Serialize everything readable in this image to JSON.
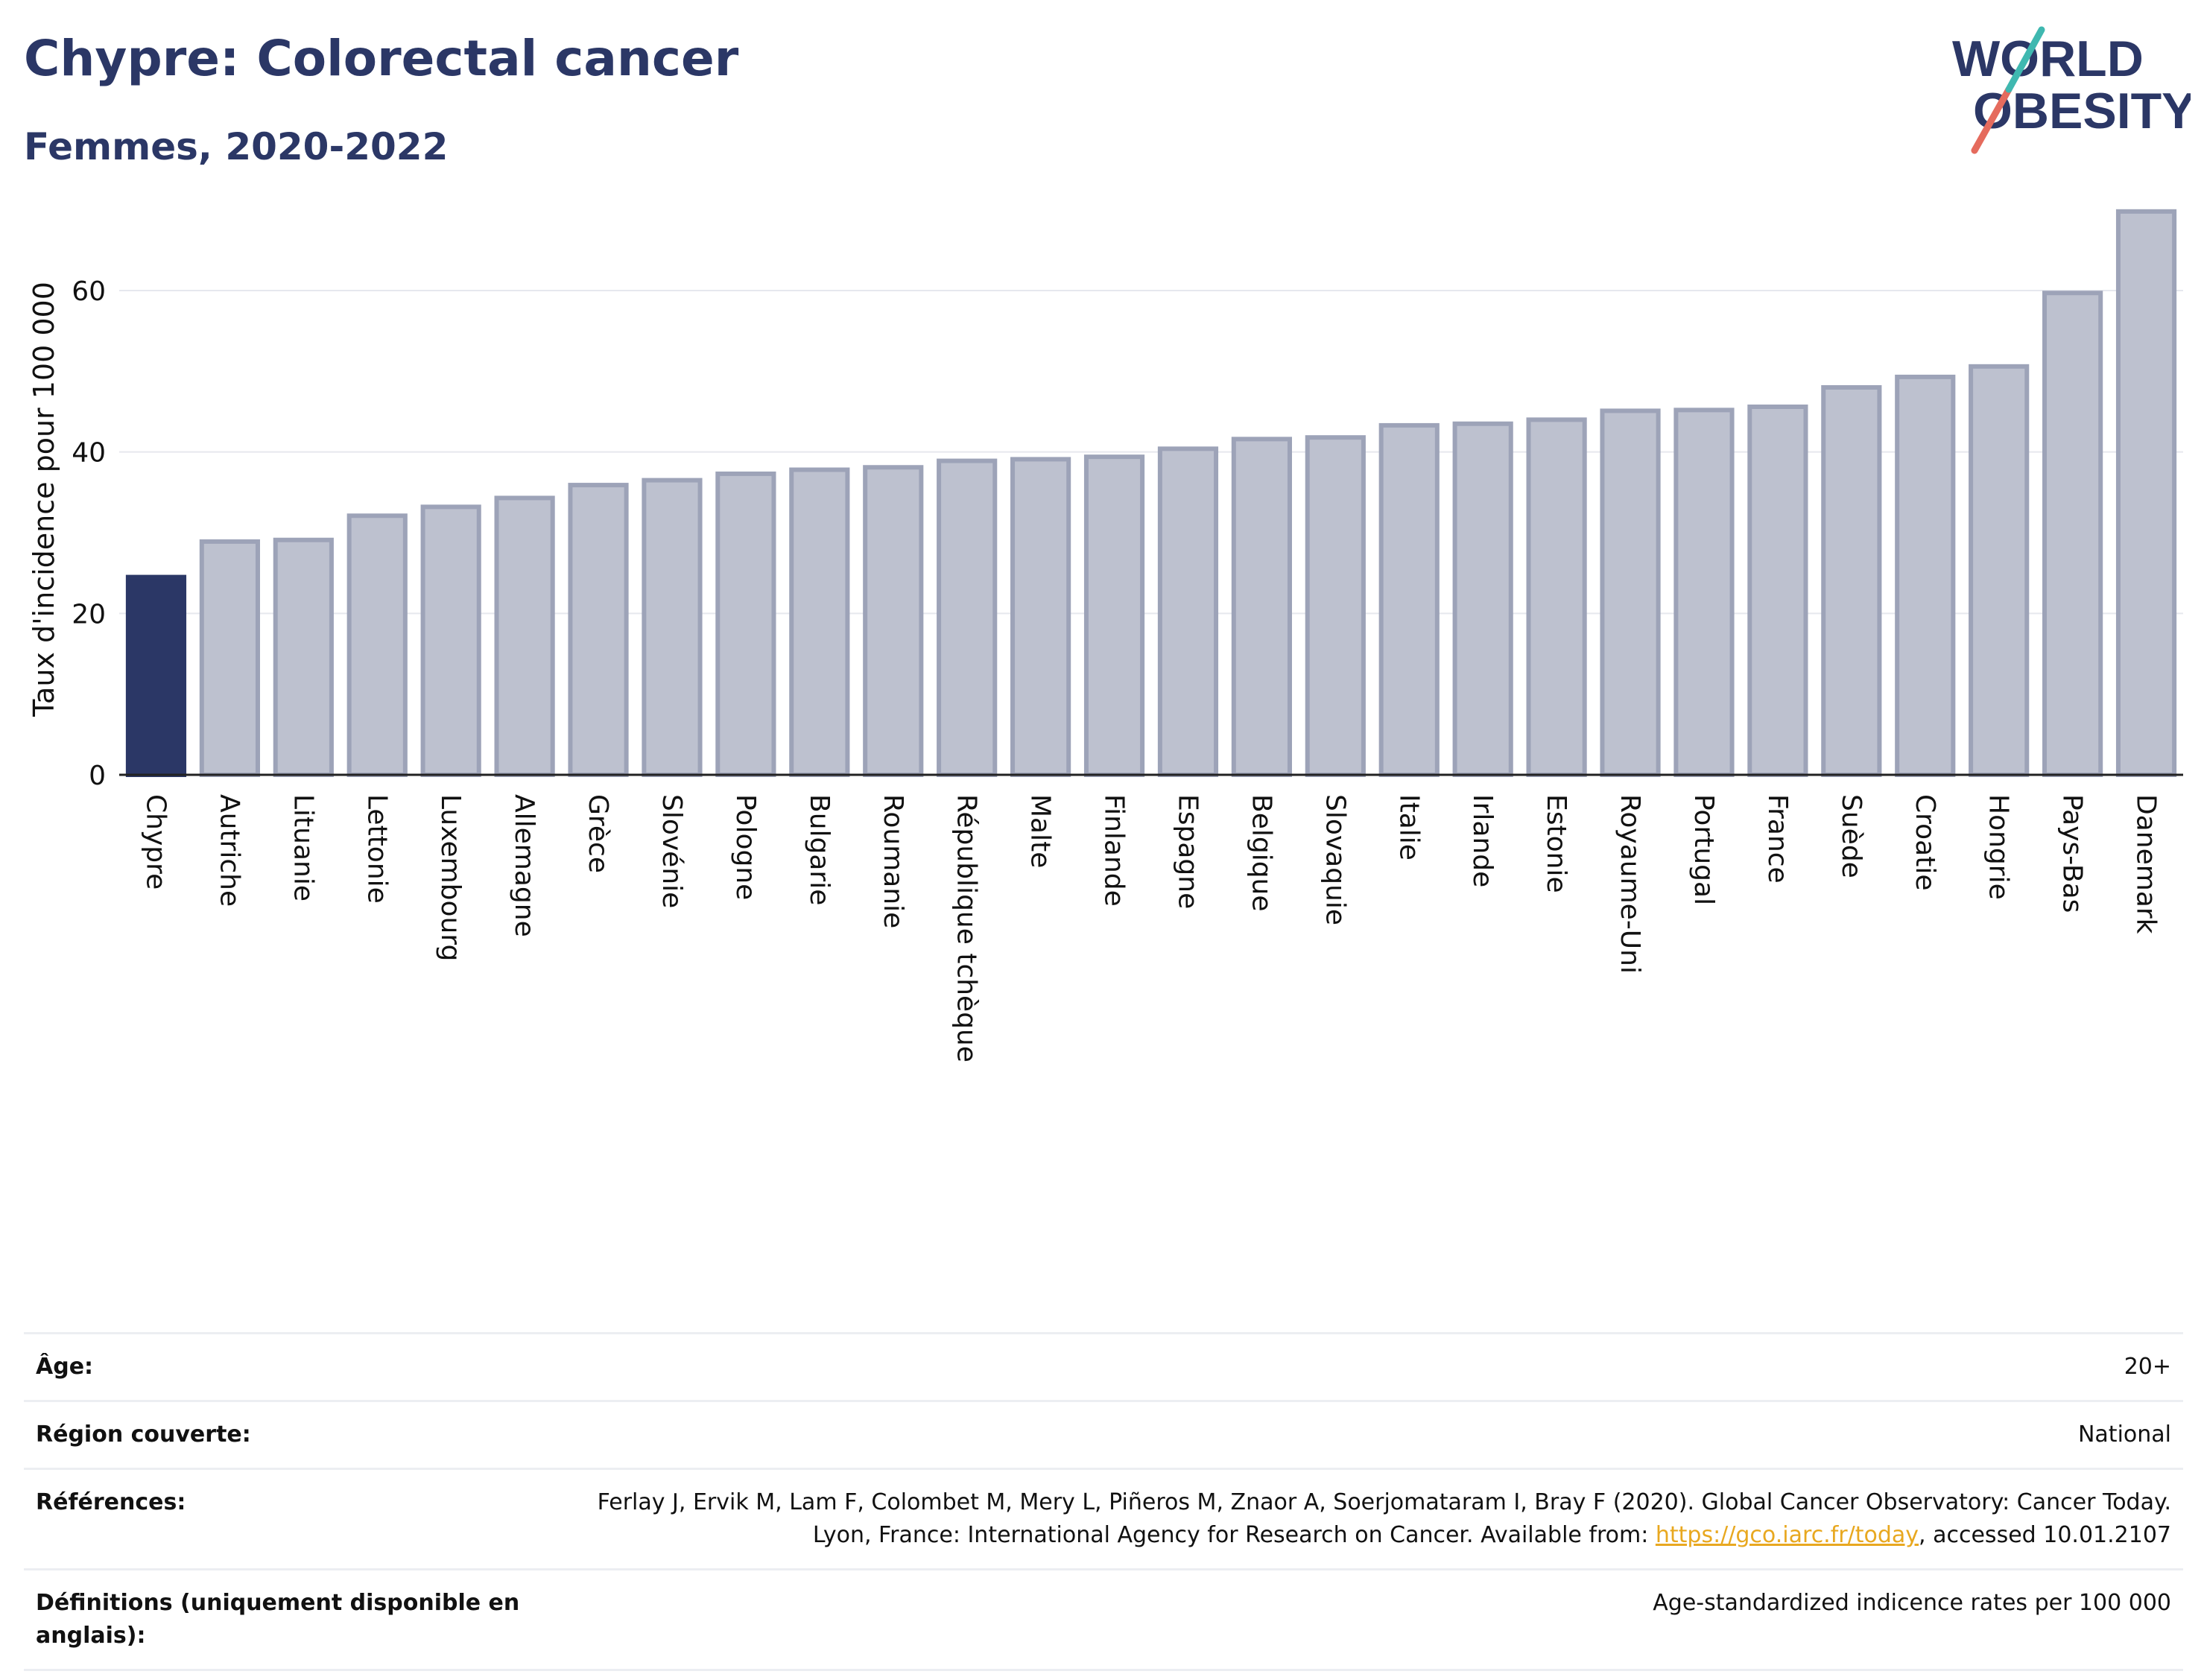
{
  "title": "Chypre: Colorectal cancer",
  "subtitle": "Femmes, 2020-2022",
  "logo": {
    "line1": "WORLD",
    "line2": "OBESITY"
  },
  "colors": {
    "highlight": "#2b3766",
    "bar_fill": "#bdc1cf",
    "bar_stroke": "#9da3b8",
    "text": "#2b3766",
    "link": "#e8a820"
  },
  "chart_data": {
    "type": "bar",
    "ylabel": "Taux d'incidence pour 100 000",
    "ylim": [
      0,
      72
    ],
    "yticks": [
      0,
      20,
      40,
      60
    ],
    "grid": true,
    "highlight_category": "Chypre",
    "categories": [
      "Chypre",
      "Autriche",
      "Lituanie",
      "Lettonie",
      "Luxembourg",
      "Allemagne",
      "Grèce",
      "Slovénie",
      "Pologne",
      "Bulgarie",
      "Roumanie",
      "République tchèque",
      "Malte",
      "Finlande",
      "Espagne",
      "Belgique",
      "Slovaquie",
      "Italie",
      "Irlande",
      "Estonie",
      "Royaume-Uni",
      "Portugal",
      "France",
      "Suède",
      "Croatie",
      "Hongrie",
      "Pays-Bas",
      "Danemark"
    ],
    "values": [
      24.5,
      28.9,
      29.1,
      32.1,
      33.2,
      34.3,
      35.9,
      36.5,
      37.3,
      37.8,
      38.1,
      38.9,
      39.1,
      39.4,
      40.4,
      41.6,
      41.8,
      43.3,
      43.5,
      44.0,
      45.1,
      45.2,
      45.6,
      48.0,
      49.3,
      50.6,
      59.7,
      69.8
    ]
  },
  "meta": [
    {
      "key": "Âge:",
      "value": "20+"
    },
    {
      "key": "Région couverte:",
      "value": "National"
    },
    {
      "key": "Références:",
      "value_pre": "Ferlay J, Ervik M, Lam F, Colombet M, Mery L, Piñeros M, Znaor A, Soerjomataram I, Bray F (2020). Global Cancer Observatory: Cancer Today. Lyon, France: International Agency for Research on Cancer. Available from: ",
      "link": "https://gco.iarc.fr/today",
      "value_post": ", accessed 10.01.2107"
    },
    {
      "key": "Définitions (uniquement disponible en anglais):",
      "value": "Age-standardized indicence rates per 100 000"
    }
  ]
}
